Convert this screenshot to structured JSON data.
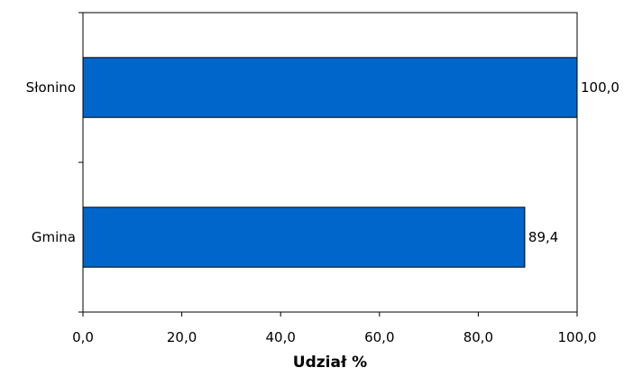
{
  "chart_data": {
    "type": "bar",
    "orientation": "horizontal",
    "categories": [
      "Słonino",
      "Gmina"
    ],
    "series": [
      {
        "values": [
          100.0,
          89.4
        ]
      }
    ],
    "data_labels": [
      "100,0",
      "89,4"
    ],
    "xlabel": "Udział %",
    "ylabel": "",
    "xlim": [
      0,
      100
    ],
    "x_ticks": [
      0,
      20,
      40,
      60,
      80,
      100
    ],
    "x_tick_labels": [
      "0,0",
      "20,0",
      "40,0",
      "60,0",
      "80,0",
      "100,0"
    ],
    "grid": false,
    "legend": "none",
    "colors": {
      "bar_fill": "#0066CC",
      "bar_stroke": "#000000",
      "axis": "#000000"
    }
  }
}
